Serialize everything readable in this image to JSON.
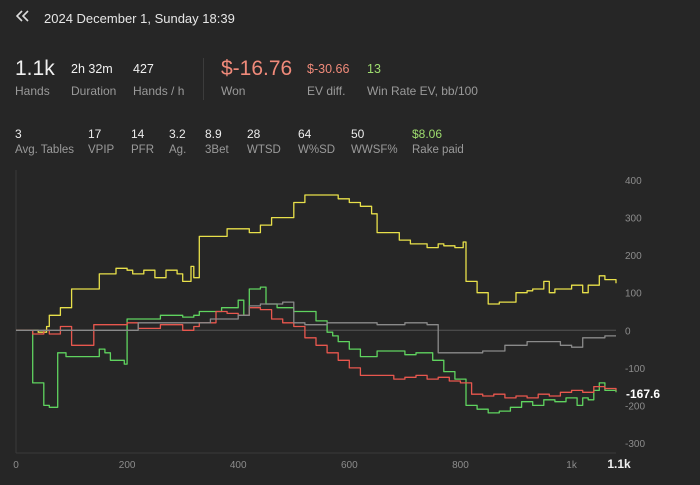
{
  "header": {
    "back_icon": "double-chevron-left-icon",
    "title": "2024 December 1, Sunday 18:39"
  },
  "summary": {
    "hands": {
      "value": "1.1k",
      "label": "Hands"
    },
    "duration": {
      "value": "2h 32m",
      "label": "Duration"
    },
    "hands_per_hour": {
      "value": "427",
      "label": "Hands / h"
    },
    "won": {
      "value": "$-16.76",
      "label": "Won"
    },
    "ev_diff": {
      "value": "$-30.66",
      "label": "EV diff."
    },
    "win_rate": {
      "value": "13",
      "label": "Win Rate EV, bb/100"
    }
  },
  "details": [
    {
      "value": "3",
      "label": "Avg. Tables"
    },
    {
      "value": "17",
      "label": "VPIP"
    },
    {
      "value": "14",
      "label": "PFR"
    },
    {
      "value": "3.2",
      "label": "Ag."
    },
    {
      "value": "8.9",
      "label": "3Bet"
    },
    {
      "value": "28",
      "label": "WTSD"
    },
    {
      "value": "64",
      "label": "W%SD"
    },
    {
      "value": "50",
      "label": "WWSF%"
    },
    {
      "value": "$8.06",
      "label": "Rake paid"
    }
  ],
  "colors": {
    "background": "#262626",
    "yellow": "#e8e04a",
    "green": "#5fd35f",
    "red": "#e8574e",
    "gray": "#8a8a8a",
    "won_negative": "#f08a7a",
    "positive": "#9edc6e"
  },
  "chart_data": {
    "type": "line",
    "x_ticks": [
      "0",
      "200",
      "400",
      "600",
      "800",
      "1k",
      "1.1k"
    ],
    "y_ticks": [
      "400",
      "300",
      "200",
      "100",
      "0",
      "-100",
      "-200",
      "-300"
    ],
    "xlim": [
      0,
      1080
    ],
    "ylim": [
      -300,
      400
    ],
    "end_value_label": "-167.6",
    "series": [
      {
        "color": "yellow",
        "points": [
          [
            0,
            0
          ],
          [
            20,
            0
          ],
          [
            40,
            -5
          ],
          [
            55,
            10
          ],
          [
            60,
            40
          ],
          [
            80,
            60
          ],
          [
            100,
            110
          ],
          [
            150,
            150
          ],
          [
            160,
            150
          ],
          [
            180,
            165
          ],
          [
            200,
            160
          ],
          [
            210,
            150
          ],
          [
            230,
            160
          ],
          [
            250,
            140
          ],
          [
            270,
            160
          ],
          [
            290,
            150
          ],
          [
            300,
            130
          ],
          [
            315,
            170
          ],
          [
            320,
            140
          ],
          [
            330,
            250
          ],
          [
            380,
            270
          ],
          [
            420,
            260
          ],
          [
            440,
            280
          ],
          [
            460,
            300
          ],
          [
            480,
            300
          ],
          [
            500,
            340
          ],
          [
            520,
            360
          ],
          [
            540,
            360
          ],
          [
            580,
            350
          ],
          [
            600,
            340
          ],
          [
            620,
            330
          ],
          [
            640,
            310
          ],
          [
            650,
            260
          ],
          [
            670,
            260
          ],
          [
            690,
            240
          ],
          [
            710,
            230
          ],
          [
            720,
            230
          ],
          [
            740,
            220
          ],
          [
            760,
            230
          ],
          [
            770,
            225
          ],
          [
            790,
            220
          ],
          [
            805,
            235
          ],
          [
            810,
            130
          ],
          [
            830,
            100
          ],
          [
            850,
            70
          ],
          [
            870,
            75
          ],
          [
            900,
            100
          ],
          [
            920,
            105
          ],
          [
            930,
            110
          ],
          [
            950,
            130
          ],
          [
            960,
            100
          ],
          [
            970,
            110
          ],
          [
            1000,
            120
          ],
          [
            1020,
            100
          ],
          [
            1030,
            120
          ],
          [
            1050,
            145
          ],
          [
            1060,
            135
          ],
          [
            1080,
            125
          ]
        ]
      },
      {
        "color": "green",
        "points": [
          [
            0,
            0
          ],
          [
            25,
            0
          ],
          [
            30,
            -140
          ],
          [
            50,
            -200
          ],
          [
            60,
            -205
          ],
          [
            75,
            -60
          ],
          [
            90,
            -70
          ],
          [
            110,
            -70
          ],
          [
            150,
            -50
          ],
          [
            160,
            -60
          ],
          [
            170,
            -80
          ],
          [
            195,
            -90
          ],
          [
            200,
            30
          ],
          [
            260,
            40
          ],
          [
            300,
            35
          ],
          [
            320,
            40
          ],
          [
            330,
            50
          ],
          [
            370,
            60
          ],
          [
            390,
            60
          ],
          [
            400,
            80
          ],
          [
            410,
            40
          ],
          [
            420,
            110
          ],
          [
            440,
            115
          ],
          [
            450,
            70
          ],
          [
            470,
            60
          ],
          [
            500,
            50
          ],
          [
            540,
            25
          ],
          [
            560,
            -5
          ],
          [
            570,
            -15
          ],
          [
            580,
            -30
          ],
          [
            600,
            -50
          ],
          [
            620,
            -70
          ],
          [
            650,
            -55
          ],
          [
            700,
            -65
          ],
          [
            720,
            -60
          ],
          [
            735,
            -60
          ],
          [
            750,
            -80
          ],
          [
            770,
            -110
          ],
          [
            790,
            -130
          ],
          [
            810,
            -200
          ],
          [
            830,
            -210
          ],
          [
            850,
            -220
          ],
          [
            870,
            -215
          ],
          [
            890,
            -205
          ],
          [
            910,
            -190
          ],
          [
            930,
            -200
          ],
          [
            950,
            -185
          ],
          [
            970,
            -190
          ],
          [
            990,
            -180
          ],
          [
            1010,
            -200
          ],
          [
            1020,
            -180
          ],
          [
            1030,
            -185
          ],
          [
            1040,
            -160
          ],
          [
            1050,
            -140
          ],
          [
            1060,
            -160
          ],
          [
            1080,
            -165
          ]
        ]
      },
      {
        "color": "red",
        "points": [
          [
            0,
            0
          ],
          [
            30,
            -10
          ],
          [
            50,
            0
          ],
          [
            60,
            -10
          ],
          [
            80,
            10
          ],
          [
            100,
            -40
          ],
          [
            120,
            -40
          ],
          [
            140,
            15
          ],
          [
            170,
            15
          ],
          [
            200,
            20
          ],
          [
            220,
            5
          ],
          [
            260,
            15
          ],
          [
            300,
            0
          ],
          [
            320,
            10
          ],
          [
            330,
            20
          ],
          [
            340,
            20
          ],
          [
            360,
            50
          ],
          [
            380,
            45
          ],
          [
            400,
            40
          ],
          [
            420,
            60
          ],
          [
            440,
            55
          ],
          [
            460,
            30
          ],
          [
            480,
            20
          ],
          [
            500,
            10
          ],
          [
            520,
            -20
          ],
          [
            540,
            -40
          ],
          [
            560,
            -60
          ],
          [
            580,
            -80
          ],
          [
            600,
            -100
          ],
          [
            620,
            -120
          ],
          [
            640,
            -120
          ],
          [
            660,
            -120
          ],
          [
            680,
            -130
          ],
          [
            700,
            -125
          ],
          [
            720,
            -120
          ],
          [
            740,
            -130
          ],
          [
            760,
            -125
          ],
          [
            780,
            -135
          ],
          [
            800,
            -140
          ],
          [
            820,
            -170
          ],
          [
            840,
            -175
          ],
          [
            860,
            -170
          ],
          [
            880,
            -180
          ],
          [
            900,
            -175
          ],
          [
            920,
            -180
          ],
          [
            940,
            -170
          ],
          [
            960,
            -175
          ],
          [
            980,
            -165
          ],
          [
            1000,
            -160
          ],
          [
            1020,
            -165
          ],
          [
            1040,
            -150
          ],
          [
            1060,
            -155
          ],
          [
            1080,
            -160
          ]
        ]
      },
      {
        "color": "gray",
        "points": [
          [
            0,
            0
          ],
          [
            200,
            0
          ],
          [
            220,
            20
          ],
          [
            300,
            20
          ],
          [
            350,
            30
          ],
          [
            400,
            40
          ],
          [
            420,
            65
          ],
          [
            440,
            70
          ],
          [
            480,
            75
          ],
          [
            500,
            20
          ],
          [
            520,
            15
          ],
          [
            560,
            20
          ],
          [
            600,
            20
          ],
          [
            650,
            15
          ],
          [
            700,
            20
          ],
          [
            740,
            15
          ],
          [
            760,
            -60
          ],
          [
            800,
            -60
          ],
          [
            840,
            -55
          ],
          [
            880,
            -40
          ],
          [
            920,
            -30
          ],
          [
            960,
            -30
          ],
          [
            980,
            -40
          ],
          [
            1000,
            -45
          ],
          [
            1020,
            -20
          ],
          [
            1060,
            -15
          ],
          [
            1080,
            -15
          ]
        ]
      }
    ]
  }
}
